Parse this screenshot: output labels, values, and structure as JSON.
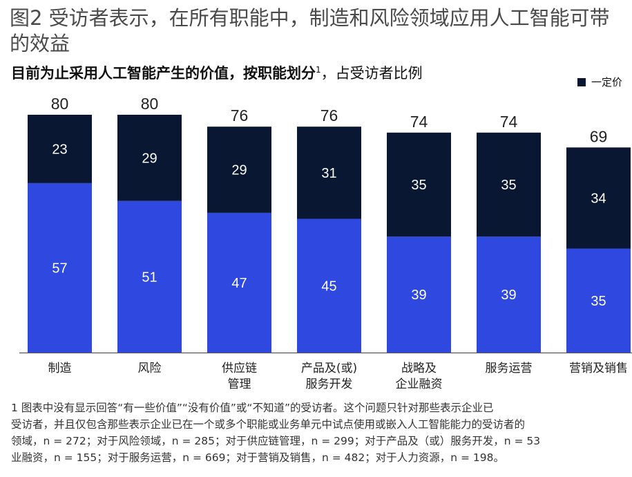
{
  "figure": {
    "title_line1": "图2 受访者表示，在所有职能中，制造和风险领域应用人工智能可带",
    "title_line2": "的效益"
  },
  "subtitle": {
    "bold": "目前为止采用人工智能产生的价值，按职能划分",
    "sup": "1",
    "rest": "，占受访者比例"
  },
  "legend": {
    "series2_label": "一定价"
  },
  "colors": {
    "blue": "#2f48e0",
    "navy": "#0a1732",
    "axis": "#555555"
  },
  "chart_data": {
    "type": "bar",
    "stacked": true,
    "categories": [
      "制造",
      "风险",
      "供应链管理",
      "产品及(或)服务开发",
      "战略及企业融资",
      "服务运营",
      "营销及销售"
    ],
    "category_label_lines": [
      [
        "制造"
      ],
      [
        "风险"
      ],
      [
        "供应链",
        "管理"
      ],
      [
        "产品及(或)",
        "服务开发"
      ],
      [
        "战略及",
        "企业融资"
      ],
      [
        "服务运营"
      ],
      [
        "营销及销售"
      ]
    ],
    "series": [
      {
        "name": "",
        "color": "#2f48e0",
        "values": [
          57,
          51,
          47,
          45,
          39,
          39,
          35
        ]
      },
      {
        "name": "一定价",
        "color": "#0a1732",
        "values": [
          23,
          29,
          29,
          31,
          35,
          35,
          34
        ]
      }
    ],
    "totals": [
      80,
      80,
      76,
      76,
      74,
      74,
      69
    ],
    "ylim": [
      0,
      100
    ]
  },
  "footnote": {
    "lines": [
      "1 图表中没有显示回答“有一些价值”“没有价值”或“不知道”的受访者。这个问题只针对那些表示企业已",
      "受访者，并且仅包含那些表示企业已在一个或多个职能或业务单元中试点使用或嵌入人工智能能力的受访者的",
      "领域，n = 272；对于风险领域，n = 285；对于供应链管理，n = 299；对于产品及（或）服务开发，n = 53",
      "业融资，n = 155；对于服务运营，n = 669；对于营销及销售，n = 482；对于人力资源，n = 198。"
    ]
  }
}
